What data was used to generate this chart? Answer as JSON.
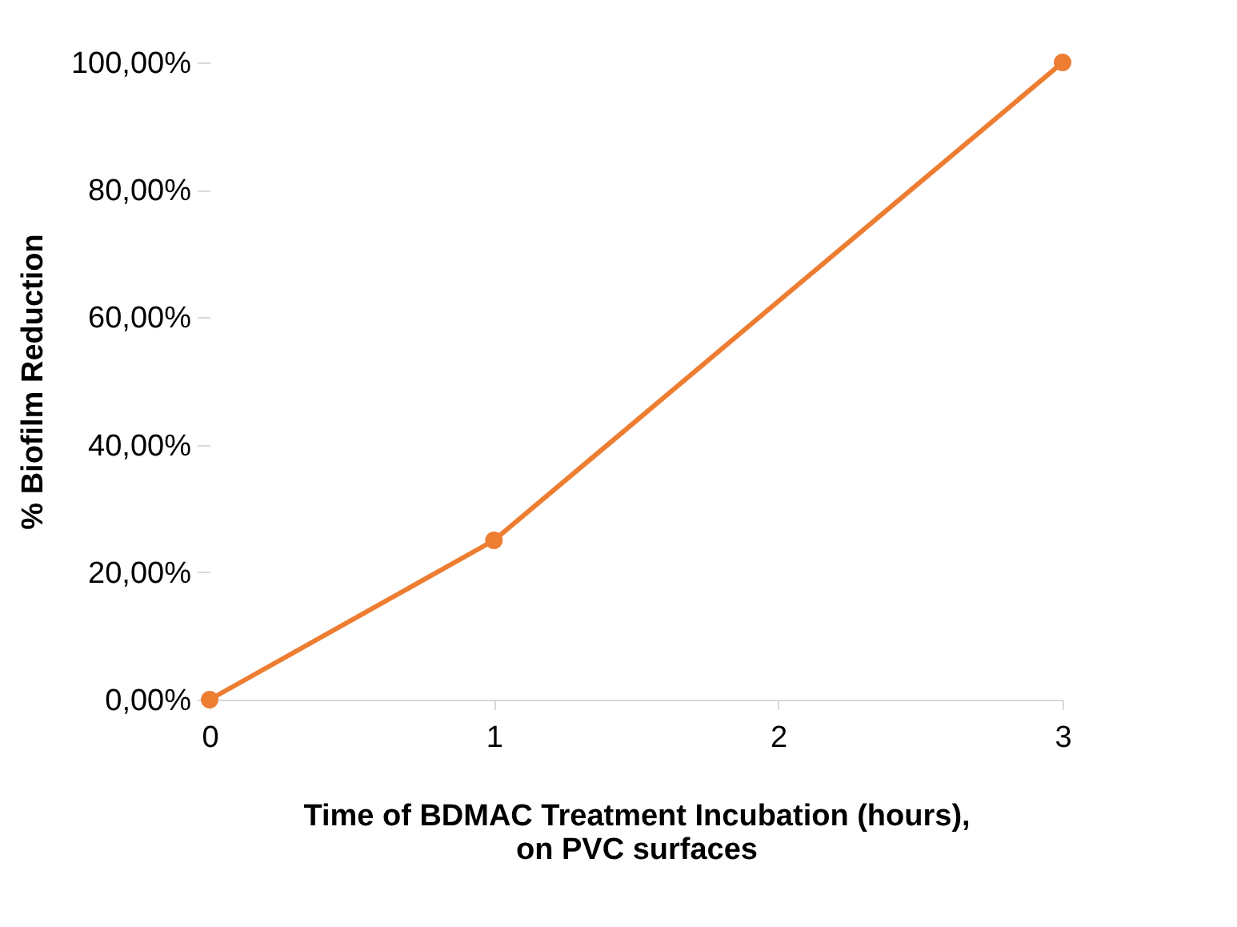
{
  "chart_data": {
    "type": "line",
    "xlabel": "Time of BDMAC Treatment Incubation (hours),\non PVC surfaces",
    "ylabel": "% Biofilm Reduction",
    "x": [
      0,
      1,
      3
    ],
    "series": [
      {
        "color": "#ed7d31",
        "values": [
          0,
          25,
          100
        ]
      }
    ],
    "xlim": [
      0,
      3
    ],
    "xticks": [
      0,
      1,
      2,
      3
    ],
    "ylim": [
      0,
      100
    ],
    "yticks": [
      {
        "value": 0,
        "label": "0,00%"
      },
      {
        "value": 20,
        "label": "20,00%"
      },
      {
        "value": 40,
        "label": "40,00%"
      },
      {
        "value": 60,
        "label": "60,00%"
      },
      {
        "value": 80,
        "label": "80,00%"
      },
      {
        "value": 100,
        "label": "100,00%"
      }
    ],
    "grid": false,
    "marker": "circle",
    "line_style": "solid"
  }
}
